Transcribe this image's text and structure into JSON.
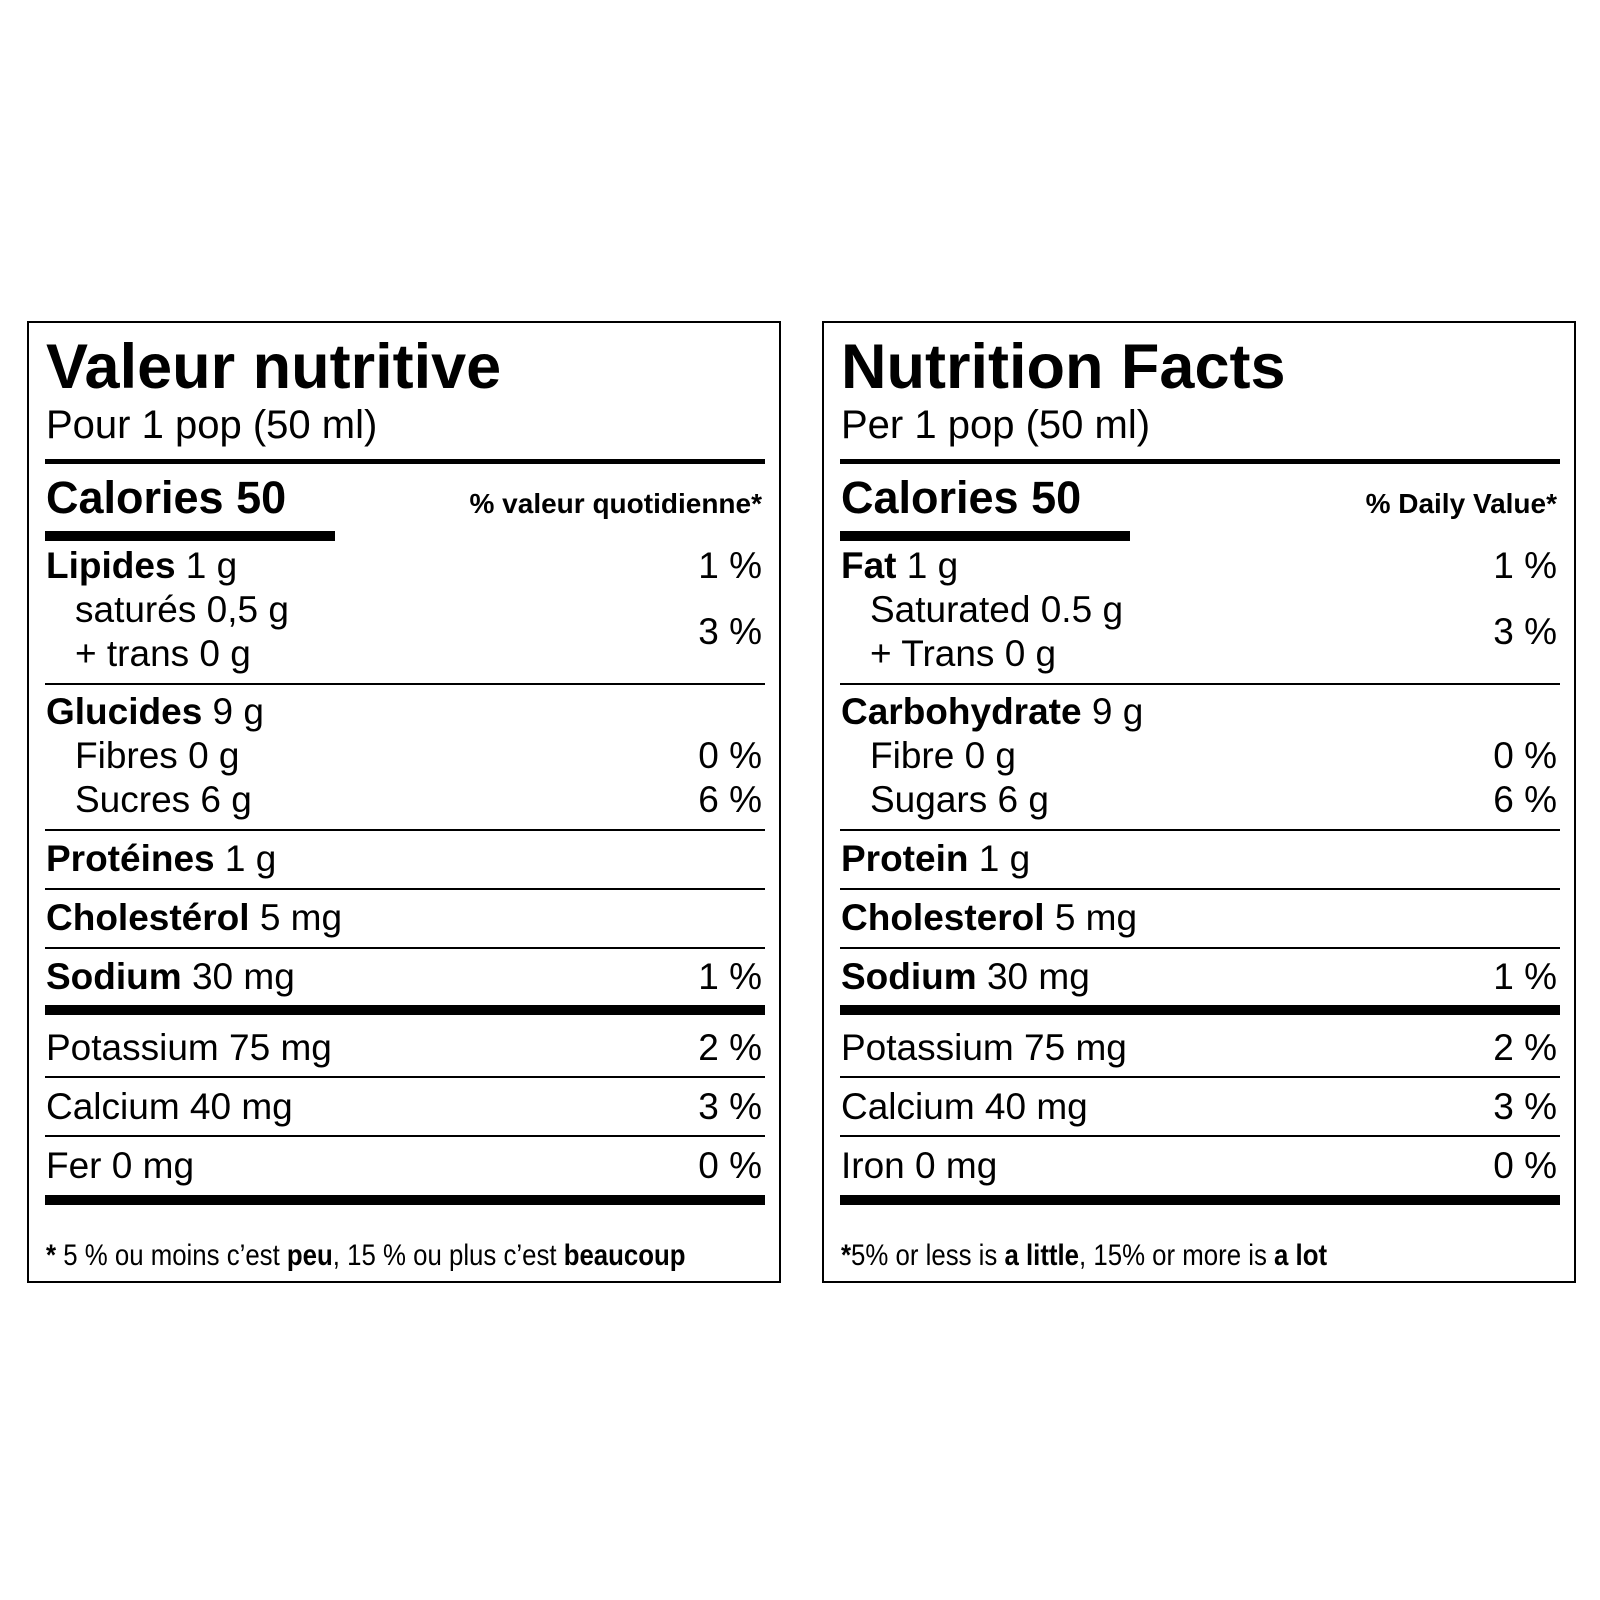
{
  "french": {
    "title": "Valeur nutritive",
    "serving": "Pour 1 pop (50 ml)",
    "calories_label": "Calories 50",
    "dv_header": "% valeur quotidienne*",
    "fat": {
      "name": "Lipides",
      "amount": " 1 g",
      "pct": "1 %"
    },
    "saturated": "saturés 0,5 g",
    "trans": "+ trans 0 g",
    "sat_trans_pct": "3 %",
    "carb": {
      "name": "Glucides",
      "amount": " 9 g"
    },
    "fibre": {
      "label": "Fibres 0 g",
      "pct": "0 %"
    },
    "sugars": {
      "label": "Sucres 6 g",
      "pct": "6 %"
    },
    "protein": {
      "name": "Protéines",
      "amount": " 1 g"
    },
    "cholesterol": {
      "name": "Cholestérol",
      "amount": " 5 mg"
    },
    "sodium": {
      "name": "Sodium",
      "amount": " 30 mg",
      "pct": "1 %"
    },
    "potassium": {
      "label": "Potassium 75 mg",
      "pct": "2 %"
    },
    "calcium": {
      "label": "Calcium 40 mg",
      "pct": "3 %"
    },
    "iron": {
      "label": "Fer 0 mg",
      "pct": "0 %"
    },
    "footnote": {
      "star": "*",
      "t1": " 5 % ou moins c’est ",
      "b1": "peu",
      "t2": ", 15 % ou plus c’est ",
      "b2": "beaucoup"
    }
  },
  "english": {
    "title": "Nutrition Facts",
    "serving": "Per 1 pop (50 ml)",
    "calories_label": "Calories 50",
    "dv_header": "% Daily Value*",
    "fat": {
      "name": "Fat",
      "amount": " 1 g",
      "pct": "1 %"
    },
    "saturated": "Saturated 0.5 g",
    "trans": "+ Trans 0 g",
    "sat_trans_pct": "3 %",
    "carb": {
      "name": "Carbohydrate",
      "amount": " 9 g"
    },
    "fibre": {
      "label": "Fibre 0 g",
      "pct": "0 %"
    },
    "sugars": {
      "label": "Sugars 6 g",
      "pct": "6 %"
    },
    "protein": {
      "name": "Protein",
      "amount": " 1 g"
    },
    "cholesterol": {
      "name": "Cholesterol",
      "amount": " 5 mg"
    },
    "sodium": {
      "name": "Sodium",
      "amount": " 30 mg",
      "pct": "1 %"
    },
    "potassium": {
      "label": "Potassium 75 mg",
      "pct": "2 %"
    },
    "calcium": {
      "label": "Calcium 40 mg",
      "pct": "3 %"
    },
    "iron": {
      "label": "Iron 0 mg",
      "pct": "0 %"
    },
    "footnote": {
      "star": "*",
      "t1": "5% or less is ",
      "b1": "a little",
      "t2": ", 15% or more is ",
      "b2": "a lot"
    }
  }
}
